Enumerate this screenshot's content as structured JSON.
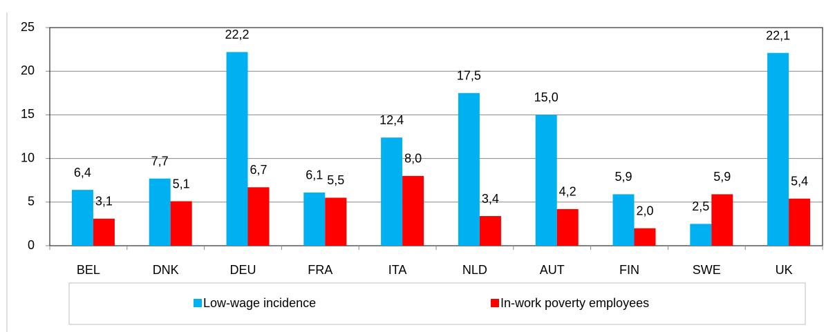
{
  "chart_data": {
    "type": "bar",
    "categories": [
      "BEL",
      "DNK",
      "DEU",
      "FRA",
      "ITA",
      "NLD",
      "AUT",
      "FIN",
      "SWE",
      "UK"
    ],
    "series": [
      {
        "name": "Low-wage incidence",
        "color": "#00b0f0",
        "values": [
          6.4,
          7.7,
          22.2,
          6.1,
          12.4,
          17.5,
          15.0,
          5.9,
          2.5,
          22.1
        ],
        "value_labels": [
          "6,4",
          "7,7",
          "22,2",
          "6,1",
          "12,4",
          "17,5",
          "15,0",
          "5,9",
          "2,5",
          "22,1"
        ]
      },
      {
        "name": "In-work poverty employees",
        "color": "#ff0000",
        "values": [
          3.1,
          5.1,
          6.7,
          5.5,
          8.0,
          3.4,
          4.2,
          2.0,
          5.9,
          5.4
        ],
        "value_labels": [
          "3,1",
          "5,1",
          "6,7",
          "5,5",
          "8,0",
          "3,4",
          "4,2",
          "2,0",
          "5,9",
          "5,4"
        ]
      }
    ],
    "ylim": [
      0,
      25
    ],
    "yticks": [
      0,
      5,
      10,
      15,
      20,
      25
    ],
    "grid": true,
    "legend": "bottom"
  }
}
